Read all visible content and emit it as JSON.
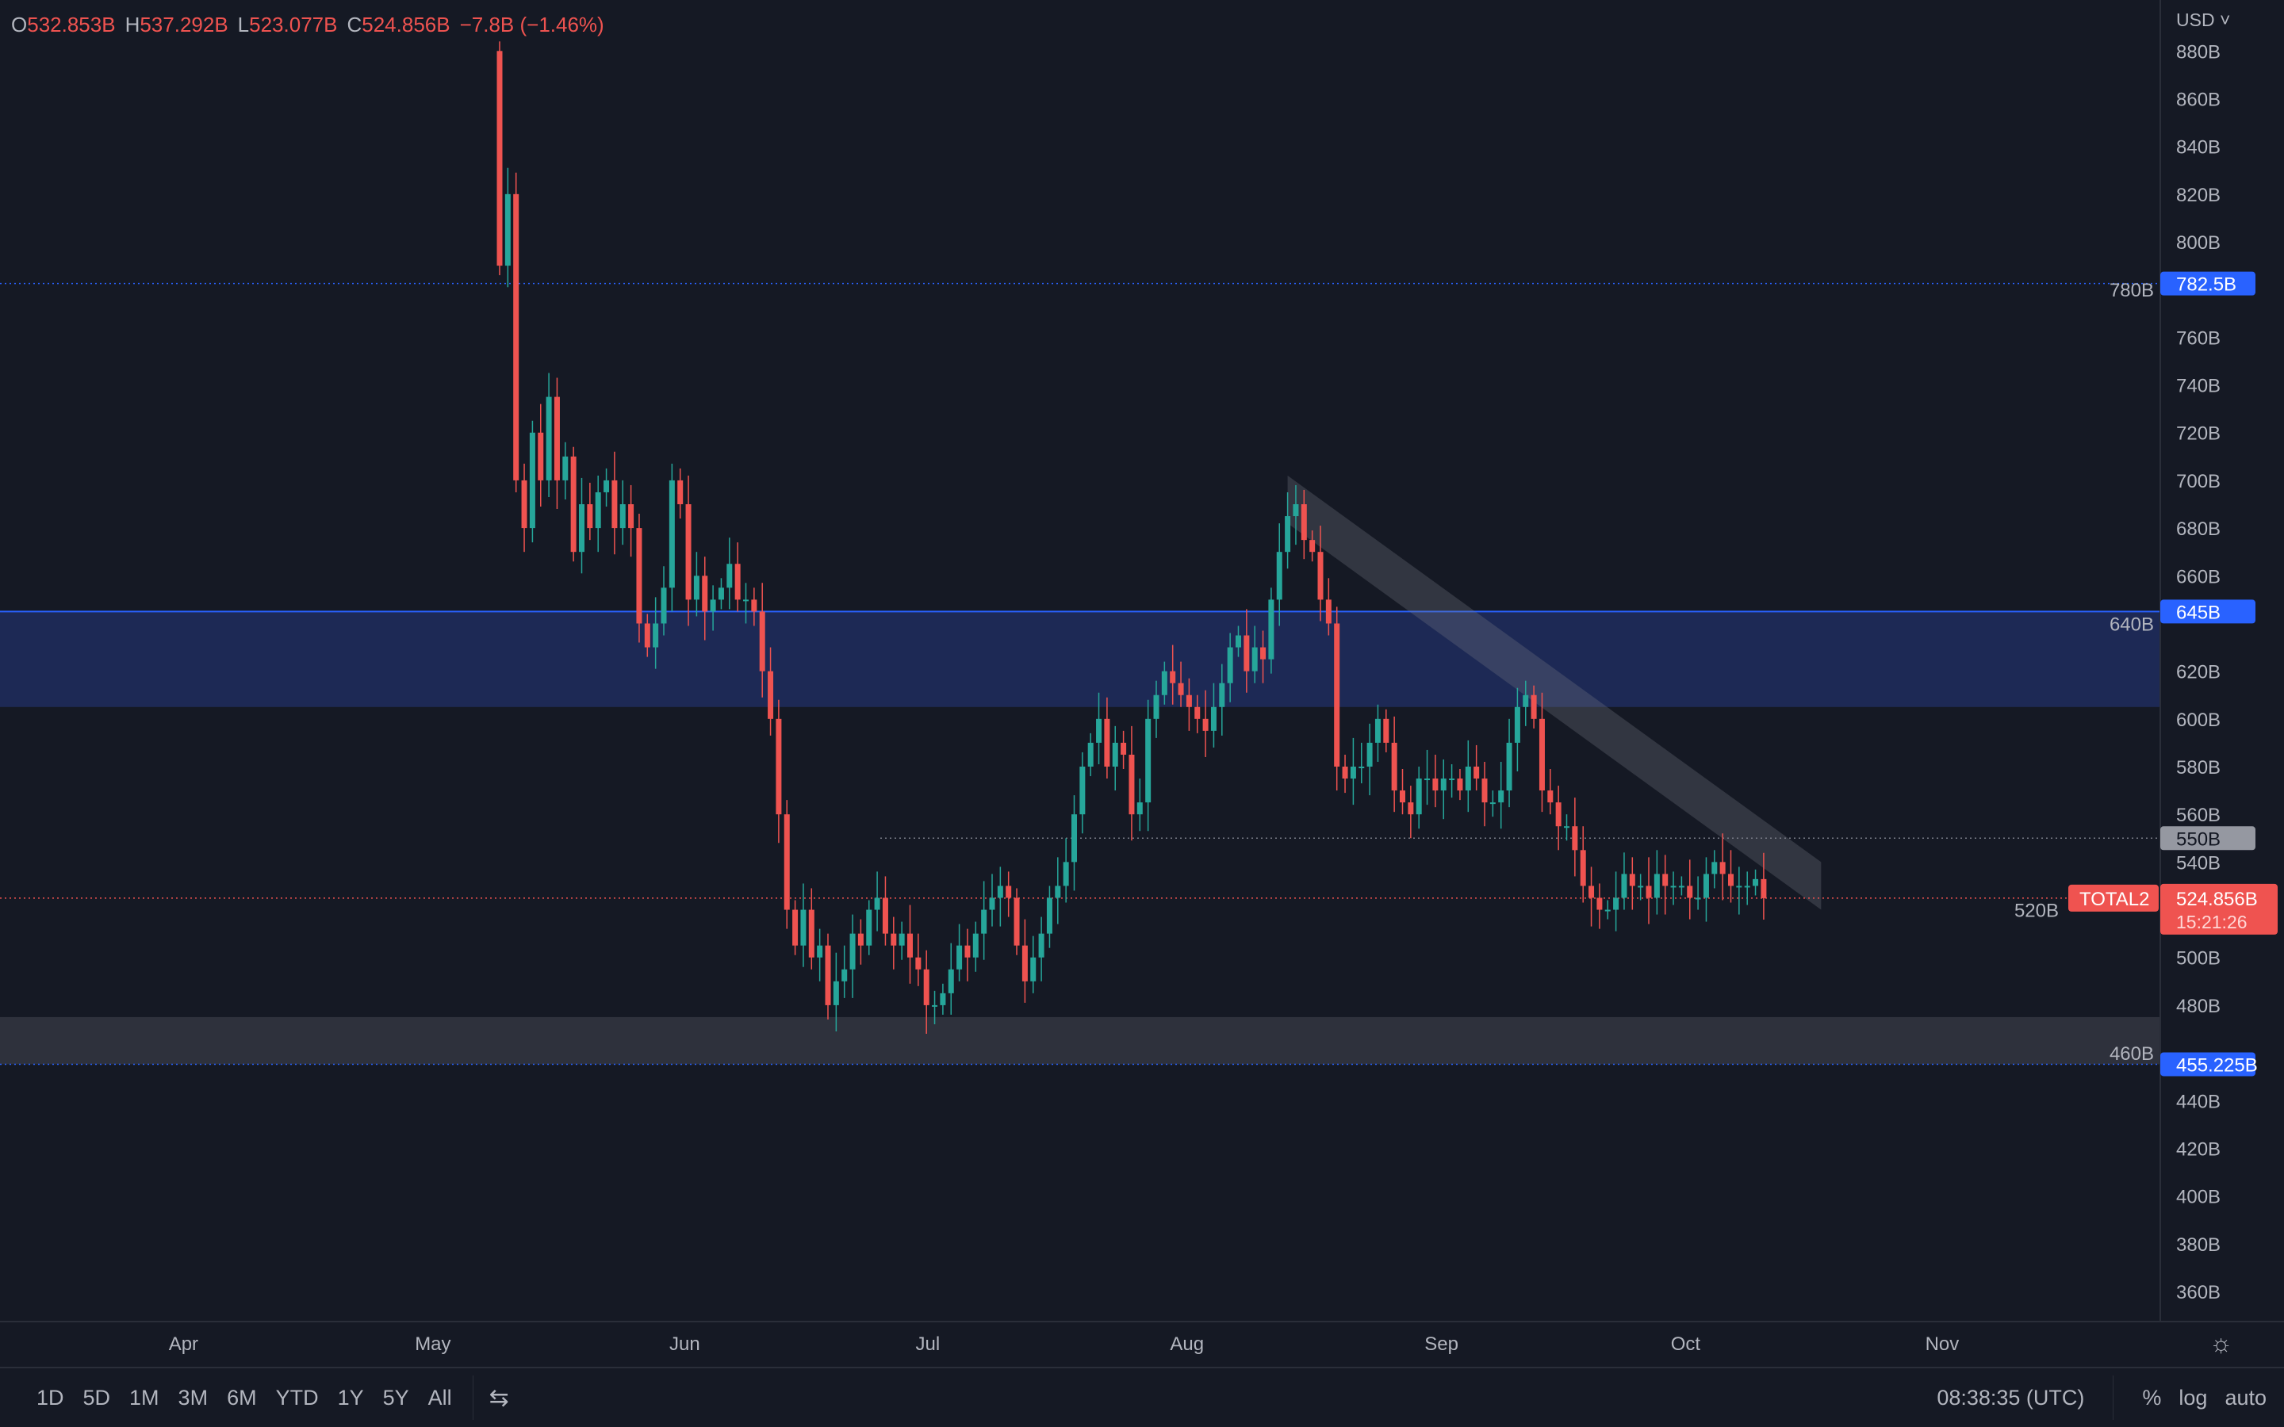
{
  "legend": {
    "o_label": "O",
    "o": "532.853B",
    "h_label": "H",
    "h": "537.292B",
    "l_label": "L",
    "l": "523.077B",
    "c_label": "C",
    "c": "524.856B",
    "change": "−7.8B (−1.46%)"
  },
  "currency": "USD",
  "colors": {
    "up": "#26a69a",
    "down": "#ef5350",
    "accent": "#2962ff",
    "zone_blue": "#1e2d5e",
    "zone_grey": "#2e313c"
  },
  "price_labels": {
    "resistance": "782.5B",
    "zone_top": "645B",
    "mid": "550B",
    "last": "524.856B",
    "countdown": "15:21:26",
    "support": "455.225B",
    "symbol": "TOTAL2"
  },
  "bottom": {
    "ranges": [
      "1D",
      "5D",
      "1M",
      "3M",
      "6M",
      "YTD",
      "1Y",
      "5Y",
      "All"
    ],
    "clock": "08:38:35 (UTC)",
    "percent": "%",
    "log": "log",
    "auto": "auto"
  },
  "chart_data": {
    "type": "candlestick",
    "title": "TOTAL2",
    "ylabel": "USD",
    "ylim": [
      350,
      890
    ],
    "yticks": [
      "360B",
      "380B",
      "400B",
      "420B",
      "440B",
      "460B",
      "480B",
      "500B",
      "520B",
      "540B",
      "560B",
      "580B",
      "600B",
      "620B",
      "640B",
      "660B",
      "680B",
      "700B",
      "720B",
      "740B",
      "760B",
      "780B",
      "800B",
      "820B",
      "840B",
      "860B",
      "880B"
    ],
    "xticks": [
      {
        "label": "Apr",
        "day": -38
      },
      {
        "label": "May",
        "day": -8
      },
      {
        "label": "Jun",
        "day": 23
      },
      {
        "label": "Jul",
        "day": 53
      },
      {
        "label": "Aug",
        "day": 84
      },
      {
        "label": "Sep",
        "day": 115
      },
      {
        "label": "Oct",
        "day": 145
      },
      {
        "label": "Nov",
        "day": 176
      }
    ],
    "first_open": 880,
    "closes": [
      790,
      820,
      700,
      680,
      720,
      700,
      735,
      700,
      710,
      670,
      690,
      680,
      695,
      700,
      680,
      690,
      680,
      640,
      630,
      640,
      655,
      700,
      690,
      650,
      660,
      645,
      650,
      655,
      665,
      650,
      650,
      645,
      620,
      600,
      560,
      520,
      505,
      520,
      500,
      505,
      480,
      490,
      495,
      510,
      505,
      520,
      525,
      510,
      505,
      510,
      500,
      495,
      480,
      480,
      485,
      495,
      505,
      500,
      510,
      520,
      525,
      530,
      525,
      505,
      490,
      500,
      510,
      525,
      530,
      540,
      560,
      580,
      590,
      600,
      580,
      590,
      585,
      560,
      565,
      600,
      610,
      620,
      615,
      610,
      605,
      600,
      595,
      605,
      615,
      630,
      635,
      620,
      630,
      625,
      650,
      670,
      685,
      690,
      675,
      670,
      650,
      640,
      580,
      575,
      580,
      580,
      590,
      600,
      590,
      570,
      565,
      560,
      575,
      575,
      570,
      575,
      575,
      570,
      580,
      575,
      565,
      565,
      570,
      590,
      605,
      610,
      600,
      570,
      565,
      555,
      555,
      545,
      530,
      525,
      520,
      520,
      525,
      535,
      530,
      530,
      525,
      535,
      530,
      530,
      530,
      525,
      525,
      535,
      540,
      535,
      530,
      530,
      530,
      532.853,
      524.856
    ],
    "levels": [
      {
        "price": 782.5,
        "style": "dotted",
        "color": "#2962ff"
      },
      {
        "price": 550,
        "style": "dotted",
        "color": "#787b86"
      },
      {
        "price": 524.856,
        "style": "dotted",
        "color": "#ef5350"
      },
      {
        "price": 455.225,
        "style": "dotted",
        "color": "#2962ff"
      }
    ],
    "zones": [
      {
        "from": 605,
        "to": 645,
        "color": "#1e2d5e"
      },
      {
        "from": 455.225,
        "to": 475,
        "color": "#2e313c"
      }
    ],
    "trend_channel": {
      "start": {
        "day": 96,
        "top": 702,
        "bottom": 682
      },
      "end": {
        "day": 161,
        "top": 540,
        "bottom": 520
      }
    }
  }
}
